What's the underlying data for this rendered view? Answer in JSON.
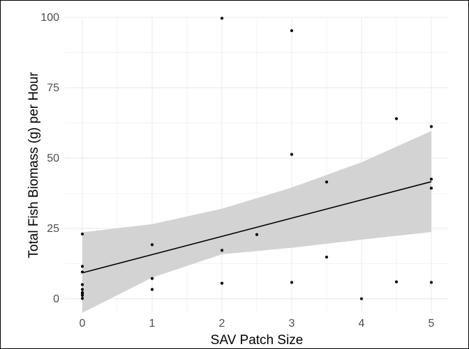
{
  "chart_data": {
    "type": "scatter",
    "xlabel": "SAV Patch Size",
    "ylabel": "Total Fish Biomass (g) per Hour",
    "xlim": [
      -0.25,
      5.25
    ],
    "ylim": [
      -5,
      100
    ],
    "x_ticks": [
      0,
      1,
      2,
      3,
      4,
      5
    ],
    "y_ticks": [
      0,
      25,
      50,
      75,
      100
    ],
    "grid": true,
    "colors": {
      "points": "#000000",
      "fit_line": "#000000",
      "confidence_band": "#d3d3d3",
      "grid": "#ebebeb"
    },
    "points": [
      {
        "x": 0,
        "y": 23.0
      },
      {
        "x": 0,
        "y": 11.5
      },
      {
        "x": 0,
        "y": 9.5
      },
      {
        "x": 0,
        "y": 5.0
      },
      {
        "x": 0,
        "y": 3.3
      },
      {
        "x": 0,
        "y": 2.2
      },
      {
        "x": 0,
        "y": 1.8
      },
      {
        "x": 0,
        "y": 1.2
      },
      {
        "x": 0,
        "y": 0.1
      },
      {
        "x": 1,
        "y": 19.2
      },
      {
        "x": 1,
        "y": 7.2
      },
      {
        "x": 1,
        "y": 3.3
      },
      {
        "x": 2,
        "y": 99.7
      },
      {
        "x": 2,
        "y": 17.2
      },
      {
        "x": 2,
        "y": 5.5
      },
      {
        "x": 2.5,
        "y": 22.8
      },
      {
        "x": 3,
        "y": 95.3
      },
      {
        "x": 3,
        "y": 51.3
      },
      {
        "x": 3,
        "y": 5.8
      },
      {
        "x": 3.5,
        "y": 41.5
      },
      {
        "x": 3.5,
        "y": 14.8
      },
      {
        "x": 4,
        "y": 0.0
      },
      {
        "x": 4.5,
        "y": 64.0
      },
      {
        "x": 4.5,
        "y": 6.0
      },
      {
        "x": 5,
        "y": 61.2
      },
      {
        "x": 5,
        "y": 42.5
      },
      {
        "x": 5,
        "y": 39.3
      },
      {
        "x": 5,
        "y": 5.8
      }
    ],
    "fit_line": {
      "x": [
        0,
        5
      ],
      "y": [
        9.2,
        41.6
      ]
    },
    "confidence_band": {
      "x": [
        0,
        1,
        2,
        3,
        4,
        5
      ],
      "lower": [
        -5.0,
        7.5,
        15.8,
        18.1,
        21.0,
        23.7
      ],
      "upper": [
        23.6,
        26.5,
        32.0,
        39.5,
        48.5,
        59.6
      ]
    }
  }
}
